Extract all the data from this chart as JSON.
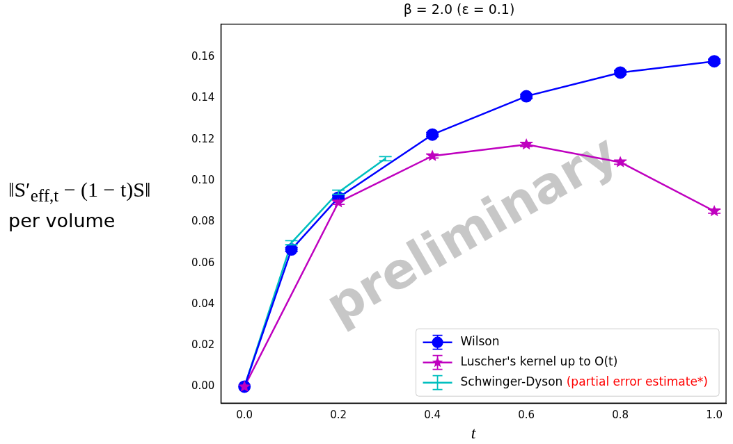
{
  "chart_data": {
    "type": "line",
    "title": "β = 2.0 (ε = 0.1)",
    "xlabel": "t",
    "ylabel": "‖S′$_{eff,t}$ − (1 − t)S‖\nper volume",
    "x": [
      0,
      0.1,
      0.2,
      0.4,
      0.6,
      0.8,
      1.0
    ],
    "series": [
      {
        "name": "Wilson",
        "color": "#0000ff",
        "marker": "circle",
        "values": [
          0,
          0.0666,
          0.0918,
          0.1224,
          0.141,
          0.1525,
          0.158
        ],
        "errors": [
          null,
          0.001,
          0.001,
          0.001,
          0.001,
          0.001,
          0.001
        ]
      },
      {
        "name": "Luscher's kernel up to O(t)",
        "color": "#bf00bf",
        "marker": "star",
        "x": [
          0,
          0.2,
          0.4,
          0.6,
          0.8,
          1.0
        ],
        "values": [
          0,
          0.0895,
          0.112,
          0.1176,
          0.109,
          0.0852
        ],
        "errors": [
          null,
          0.001,
          0.001,
          0.001,
          0.001,
          0.001
        ]
      },
      {
        "name": "Schwinger-Dyson",
        "color": "#00bfbf",
        "marker": "none",
        "x": [
          0,
          0.1,
          0.2,
          0.3
        ],
        "values": [
          0,
          0.0699,
          0.0944,
          0.1107
        ],
        "errors": [
          null,
          0.001,
          0.001,
          0.001
        ]
      }
    ],
    "annotations": [
      "(partial error estimate*)",
      "preliminary"
    ],
    "xlim": [
      -0.05,
      1.025
    ],
    "xticks": [
      {
        "value": 0,
        "label": "0.0"
      },
      {
        "value": 0.2,
        "label": "0.2"
      },
      {
        "value": 0.4,
        "label": "0.4"
      },
      {
        "value": 0.6,
        "label": "0.6"
      },
      {
        "value": 0.8,
        "label": "0.8"
      },
      {
        "value": 1.0,
        "label": "1.0"
      }
    ],
    "ylim": [
      -0.008,
      0.176
    ],
    "yticks": [
      {
        "value": 0,
        "label": "0.00"
      },
      {
        "value": 0.02,
        "label": "0.02"
      },
      {
        "value": 0.04,
        "label": "0.04"
      },
      {
        "value": 0.06,
        "label": "0.06"
      },
      {
        "value": 0.08,
        "label": "0.08"
      },
      {
        "value": 0.1,
        "label": "0.10"
      },
      {
        "value": 0.12,
        "label": "0.12"
      },
      {
        "value": 0.14,
        "label": "0.14"
      },
      {
        "value": 0.16,
        "label": "0.16"
      }
    ],
    "grid": false,
    "legend": "bottom right"
  }
}
